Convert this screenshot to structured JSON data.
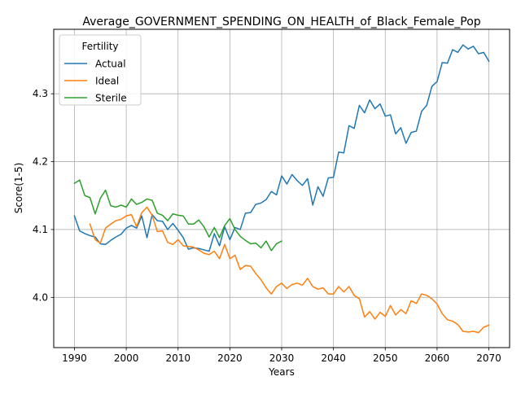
{
  "chart_data": {
    "type": "line",
    "title": "Average_GOVERNMENT_SPENDING_ON_HEALTH_of_Black_Female_Pop",
    "xlabel": "Years",
    "ylabel": "Score(1-5)",
    "xlim": [
      1986,
      2074
    ],
    "ylim": [
      3.926,
      4.395
    ],
    "xticks": [
      1990,
      2000,
      2010,
      2020,
      2030,
      2040,
      2050,
      2060,
      2070
    ],
    "yticks": [
      4.0,
      4.1,
      4.2,
      4.3
    ],
    "xtick_labels": [
      "1990",
      "2000",
      "2010",
      "2020",
      "2030",
      "2040",
      "2050",
      "2060",
      "2070"
    ],
    "ytick_labels": [
      "4.0",
      "4.1",
      "4.2",
      "4.3"
    ],
    "grid": true,
    "legend": {
      "title": "Fertility",
      "placement": "upper-left",
      "entries": [
        "Actual",
        "Ideal",
        "Sterile"
      ]
    },
    "series": [
      {
        "name": "Actual",
        "color": "#1f77b4",
        "x": [
          1990,
          1991,
          1992,
          1993,
          1994,
          1995,
          1996,
          1997,
          1998,
          1999,
          2000,
          2001,
          2002,
          2003,
          2004,
          2005,
          2006,
          2007,
          2008,
          2009,
          2010,
          2011,
          2012,
          2013,
          2014,
          2015,
          2016,
          2017,
          2018,
          2019,
          2020,
          2021,
          2022,
          2023,
          2024,
          2025,
          2026,
          2027,
          2028,
          2029,
          2030,
          2031,
          2032,
          2033,
          2034,
          2035,
          2036,
          2037,
          2038,
          2039,
          2040,
          2041,
          2042,
          2043,
          2044,
          2045,
          2046,
          2047,
          2048,
          2049,
          2050,
          2051,
          2052,
          2053,
          2054,
          2055,
          2056,
          2057,
          2058,
          2059,
          2060,
          2061,
          2062,
          2063,
          2064,
          2065,
          2066,
          2067,
          2068,
          2069,
          2070
        ],
        "values": [
          4.12,
          4.098,
          4.094,
          4.091,
          4.089,
          4.079,
          4.078,
          4.084,
          4.089,
          4.093,
          4.102,
          4.106,
          4.102,
          4.12,
          4.088,
          4.122,
          4.113,
          4.112,
          4.1,
          4.109,
          4.099,
          4.088,
          4.071,
          4.073,
          4.072,
          4.07,
          4.068,
          4.094,
          4.076,
          4.104,
          4.085,
          4.103,
          4.1,
          4.124,
          4.125,
          4.137,
          4.139,
          4.144,
          4.156,
          4.151,
          4.179,
          4.167,
          4.181,
          4.172,
          4.165,
          4.175,
          4.136,
          4.163,
          4.149,
          4.176,
          4.177,
          4.214,
          4.213,
          4.253,
          4.249,
          4.283,
          4.272,
          4.291,
          4.278,
          4.285,
          4.267,
          4.269,
          4.241,
          4.25,
          4.227,
          4.243,
          4.245,
          4.274,
          4.283,
          4.311,
          4.318,
          4.346,
          4.345,
          4.365,
          4.361,
          4.372,
          4.366,
          4.37,
          4.359,
          4.361,
          4.348
        ]
      },
      {
        "name": "Ideal",
        "color": "#ff7f0e",
        "x": [
          1993,
          1994,
          1995,
          1996,
          1997,
          1998,
          1999,
          2000,
          2001,
          2002,
          2003,
          2004,
          2005,
          2006,
          2007,
          2008,
          2009,
          2010,
          2011,
          2012,
          2013,
          2014,
          2015,
          2016,
          2017,
          2018,
          2019,
          2020,
          2021,
          2022,
          2023,
          2024,
          2025,
          2026,
          2027,
          2028,
          2029,
          2030,
          2031,
          2032,
          2033,
          2034,
          2035,
          2036,
          2037,
          2038,
          2039,
          2040,
          2041,
          2042,
          2043,
          2044,
          2045,
          2046,
          2047,
          2048,
          2049,
          2050,
          2051,
          2052,
          2053,
          2054,
          2055,
          2056,
          2057,
          2058,
          2059,
          2060,
          2061,
          2062,
          2063,
          2064,
          2065,
          2066,
          2067,
          2068,
          2069,
          2070
        ],
        "values": [
          4.108,
          4.085,
          4.08,
          4.102,
          4.108,
          4.113,
          4.115,
          4.12,
          4.122,
          4.104,
          4.125,
          4.133,
          4.121,
          4.097,
          4.098,
          4.081,
          4.078,
          4.085,
          4.076,
          4.075,
          4.074,
          4.07,
          4.065,
          4.063,
          4.068,
          4.057,
          4.078,
          4.057,
          4.062,
          4.041,
          4.047,
          4.046,
          4.035,
          4.026,
          4.014,
          4.005,
          4.016,
          4.021,
          4.013,
          4.019,
          4.021,
          4.018,
          4.028,
          4.016,
          4.012,
          4.014,
          4.005,
          4.005,
          4.016,
          4.008,
          4.016,
          4.003,
          3.998,
          3.971,
          3.979,
          3.968,
          3.978,
          3.972,
          3.988,
          3.974,
          3.982,
          3.976,
          3.995,
          3.991,
          4.005,
          4.003,
          3.998,
          3.99,
          3.976,
          3.967,
          3.965,
          3.96,
          3.95,
          3.949,
          3.95,
          3.948,
          3.956,
          3.959
        ]
      },
      {
        "name": "Sterile",
        "color": "#2ca02c",
        "x": [
          1990,
          1991,
          1992,
          1993,
          1994,
          1995,
          1996,
          1997,
          1998,
          1999,
          2000,
          2001,
          2002,
          2003,
          2004,
          2005,
          2006,
          2007,
          2008,
          2009,
          2010,
          2011,
          2012,
          2013,
          2014,
          2015,
          2016,
          2017,
          2018,
          2019,
          2020,
          2021,
          2022,
          2023,
          2024,
          2025,
          2026,
          2027,
          2028,
          2029,
          2030
        ],
        "values": [
          4.168,
          4.173,
          4.15,
          4.147,
          4.123,
          4.146,
          4.158,
          4.135,
          4.133,
          4.136,
          4.133,
          4.145,
          4.137,
          4.14,
          4.145,
          4.143,
          4.124,
          4.121,
          4.113,
          4.123,
          4.121,
          4.12,
          4.108,
          4.108,
          4.114,
          4.104,
          4.089,
          4.103,
          4.088,
          4.106,
          4.116,
          4.1,
          4.09,
          4.084,
          4.079,
          4.08,
          4.073,
          4.083,
          4.069,
          4.079,
          4.083
        ]
      }
    ]
  }
}
